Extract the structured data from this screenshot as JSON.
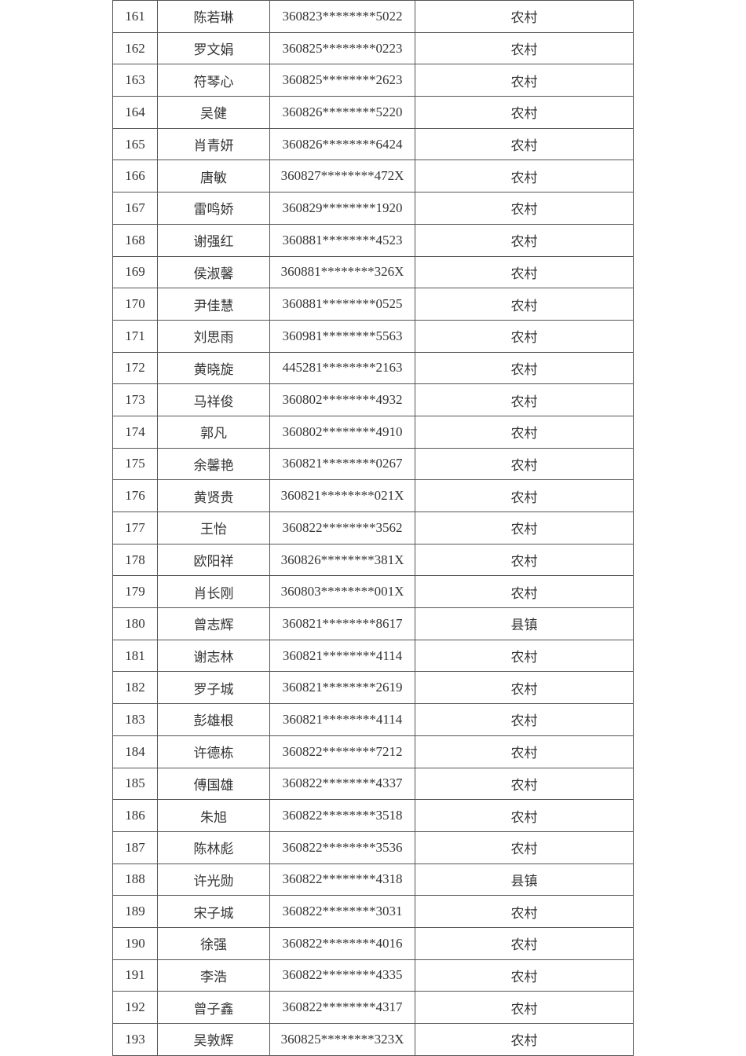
{
  "table": {
    "rows": [
      [
        "161",
        "陈若琳",
        "360823********5022",
        "农村"
      ],
      [
        "162",
        "罗文娟",
        "360825********0223",
        "农村"
      ],
      [
        "163",
        "符琴心",
        "360825********2623",
        "农村"
      ],
      [
        "164",
        "吴健",
        "360826********5220",
        "农村"
      ],
      [
        "165",
        "肖青妍",
        "360826********6424",
        "农村"
      ],
      [
        "166",
        "唐敏",
        "360827********472X",
        "农村"
      ],
      [
        "167",
        "雷鸣娇",
        "360829********1920",
        "农村"
      ],
      [
        "168",
        "谢强红",
        "360881********4523",
        "农村"
      ],
      [
        "169",
        "侯淑馨",
        "360881********326X",
        "农村"
      ],
      [
        "170",
        "尹佳慧",
        "360881********0525",
        "农村"
      ],
      [
        "171",
        "刘思雨",
        "360981********5563",
        "农村"
      ],
      [
        "172",
        "黄晓旋",
        "445281********2163",
        "农村"
      ],
      [
        "173",
        "马祥俊",
        "360802********4932",
        "农村"
      ],
      [
        "174",
        "郭凡",
        "360802********4910",
        "农村"
      ],
      [
        "175",
        "余馨艳",
        "360821********0267",
        "农村"
      ],
      [
        "176",
        "黄贤贵",
        "360821********021X",
        "农村"
      ],
      [
        "177",
        "王怡",
        "360822********3562",
        "农村"
      ],
      [
        "178",
        "欧阳祥",
        "360826********381X",
        "农村"
      ],
      [
        "179",
        "肖长刚",
        "360803********001X",
        "农村"
      ],
      [
        "180",
        "曾志辉",
        "360821********8617",
        "县镇"
      ],
      [
        "181",
        "谢志林",
        "360821********4114",
        "农村"
      ],
      [
        "182",
        "罗子城",
        "360821********2619",
        "农村"
      ],
      [
        "183",
        "彭雄根",
        "360821********4114",
        "农村"
      ],
      [
        "184",
        "许德栋",
        "360822********7212",
        "农村"
      ],
      [
        "185",
        "傅国雄",
        "360822********4337",
        "农村"
      ],
      [
        "186",
        "朱旭",
        "360822********3518",
        "农村"
      ],
      [
        "187",
        "陈林彪",
        "360822********3536",
        "农村"
      ],
      [
        "188",
        "许光勋",
        "360822********4318",
        "县镇"
      ],
      [
        "189",
        "宋子城",
        "360822********3031",
        "农村"
      ],
      [
        "190",
        "徐强",
        "360822********4016",
        "农村"
      ],
      [
        "191",
        "李浩",
        "360822********4335",
        "农村"
      ],
      [
        "192",
        "曾子鑫",
        "360822********4317",
        "农村"
      ],
      [
        "193",
        "吴敦辉",
        "360825********323X",
        "农村"
      ]
    ]
  }
}
